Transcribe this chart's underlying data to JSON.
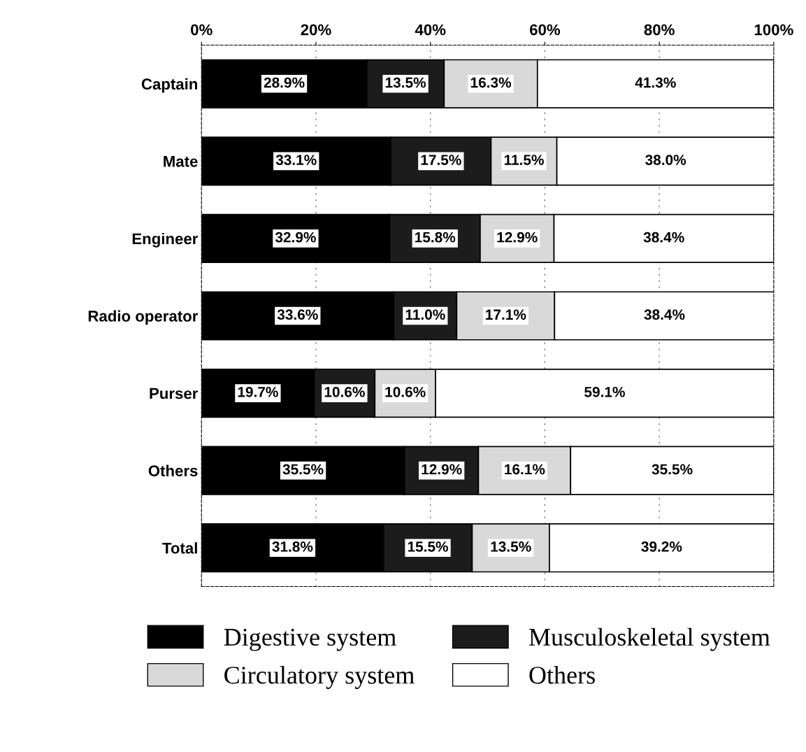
{
  "chart_data": {
    "type": "bar",
    "orientation": "horizontal",
    "stacked": true,
    "categories": [
      "Captain",
      "Mate",
      "Engineer",
      "Radio operator",
      "Purser",
      "Others",
      "Total"
    ],
    "series": [
      {
        "name": "Digestive system",
        "color": "#000000",
        "values": [
          28.9,
          33.1,
          32.9,
          33.6,
          19.7,
          35.5,
          31.8
        ],
        "value_labels": [
          "28.9%",
          "33.1%",
          "32.9%",
          "33.6%",
          "19.7%",
          "35.5%",
          "31.8%"
        ]
      },
      {
        "name": "Musculoskeletal system",
        "color": "#1c1c1c",
        "values": [
          13.5,
          17.5,
          15.8,
          11.0,
          10.6,
          12.9,
          15.5
        ],
        "value_labels": [
          "13.5%",
          "17.5%",
          "15.8%",
          "11.0%",
          "10.6%",
          "12.9%",
          "15.5%"
        ]
      },
      {
        "name": "Circulatory system",
        "color": "#d9d9d9",
        "values": [
          16.3,
          11.5,
          12.9,
          17.1,
          10.6,
          16.1,
          13.5
        ],
        "value_labels": [
          "16.3%",
          "11.5%",
          "12.9%",
          "17.1%",
          "10.6%",
          "16.1%",
          "13.5%"
        ]
      },
      {
        "name": "Others",
        "color": "#ffffff",
        "values": [
          41.3,
          38.0,
          38.4,
          38.4,
          59.1,
          35.5,
          39.2
        ],
        "value_labels": [
          "41.3%",
          "38.0%",
          "38.4%",
          "38.4%",
          "59.1%",
          "35.5%",
          "39.2%"
        ]
      }
    ],
    "xlim": [
      0,
      100
    ],
    "xticks": [
      {
        "value": 0,
        "label": "0%"
      },
      {
        "value": 20,
        "label": "20%"
      },
      {
        "value": 40,
        "label": "40%"
      },
      {
        "value": 60,
        "label": "60%"
      },
      {
        "value": 80,
        "label": "80%"
      },
      {
        "value": 100,
        "label": "100%"
      }
    ],
    "grid": "x",
    "legend": "bottom"
  }
}
